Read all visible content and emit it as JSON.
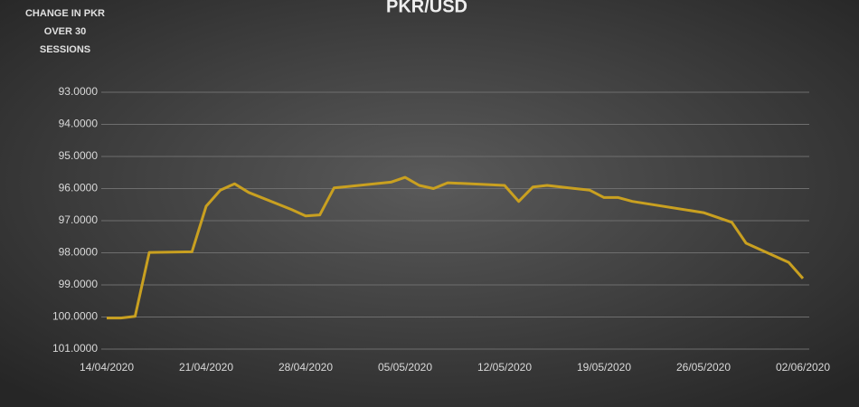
{
  "chart_data": {
    "type": "line",
    "title": "PKR/USD",
    "annotation": "CHANGE IN PKR OVER 30 SESSIONS",
    "x": [
      "14/04/2020",
      "15/04/2020",
      "16/04/2020",
      "17/04/2020",
      "20/04/2020",
      "21/04/2020",
      "22/04/2020",
      "23/04/2020",
      "24/04/2020",
      "27/04/2020",
      "28/04/2020",
      "29/04/2020",
      "30/04/2020",
      "04/05/2020",
      "05/05/2020",
      "06/05/2020",
      "07/05/2020",
      "08/05/2020",
      "11/05/2020",
      "12/05/2020",
      "13/05/2020",
      "14/05/2020",
      "15/05/2020",
      "18/05/2020",
      "19/05/2020",
      "20/05/2020",
      "21/05/2020",
      "26/05/2020",
      "28/05/2020",
      "29/05/2020",
      "01/06/2020",
      "02/06/2020"
    ],
    "series": [
      {
        "color": "#c9a020",
        "values": [
          100.03,
          100.03,
          99.98,
          97.99,
          97.97,
          96.55,
          96.05,
          95.85,
          96.12,
          96.65,
          96.85,
          96.82,
          95.98,
          95.8,
          95.65,
          95.9,
          96.0,
          95.82,
          95.88,
          95.9,
          96.4,
          95.95,
          95.9,
          96.05,
          96.28,
          96.28,
          96.4,
          96.75,
          97.05,
          97.7,
          98.3,
          98.8
        ]
      }
    ],
    "xlim": [
      "14/04/2020",
      "02/06/2020"
    ],
    "xticks": [
      "14/04/2020",
      "21/04/2020",
      "28/04/2020",
      "05/05/2020",
      "12/05/2020",
      "19/05/2020",
      "26/05/2020",
      "02/06/2020"
    ],
    "ylim": [
      93,
      101
    ],
    "y_inverted": true,
    "yticks": [
      {
        "value": 93,
        "label": "93.0000"
      },
      {
        "value": 94,
        "label": "94.0000"
      },
      {
        "value": 95,
        "label": "95.0000"
      },
      {
        "value": 96,
        "label": "96.0000"
      },
      {
        "value": 97,
        "label": "97.0000"
      },
      {
        "value": 98,
        "label": "98.0000"
      },
      {
        "value": 99,
        "label": "99.0000"
      },
      {
        "value": 100,
        "label": "100.0000"
      },
      {
        "value": 101,
        "label": "101.0000"
      }
    ],
    "grid": true
  }
}
